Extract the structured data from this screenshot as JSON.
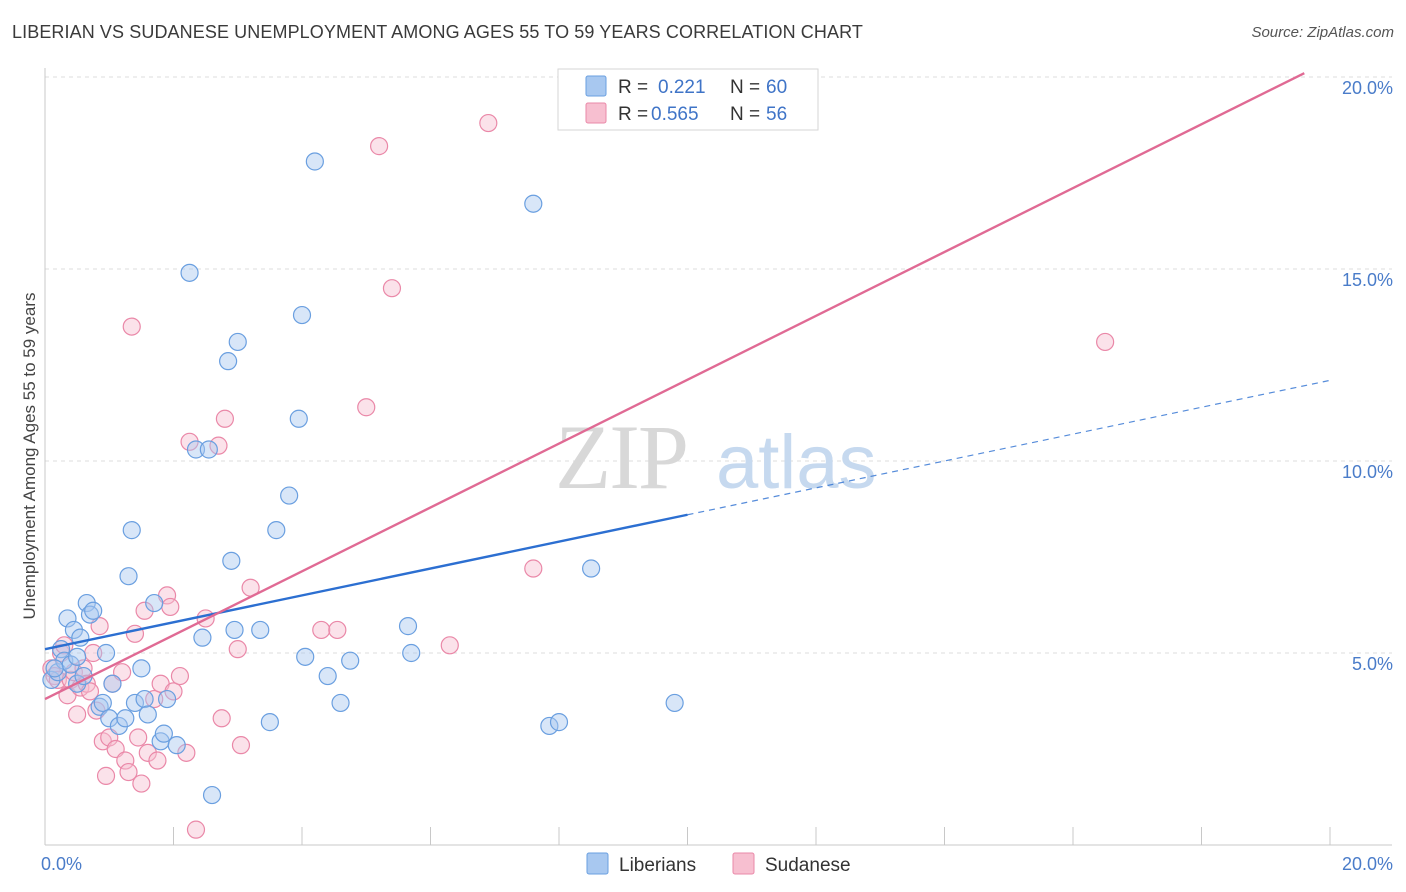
{
  "title": "LIBERIAN VS SUDANESE UNEMPLOYMENT AMONG AGES 55 TO 59 YEARS CORRELATION CHART",
  "source": "Source: ZipAtlas.com",
  "watermark": {
    "zip": "ZIP",
    "atlas": "atlas"
  },
  "colors": {
    "blue_fill": "#a8c8f0",
    "blue_stroke": "#6a9fe0",
    "blue_line": "#2c6fd1",
    "pink_fill": "#f7bfd0",
    "pink_stroke": "#ea88a8",
    "pink_line": "#e06a94",
    "grid": "#dcdcdc",
    "tick_label": "#4a7cc9"
  },
  "legend": {
    "rows": [
      {
        "r_label": "R =",
        "r_value": "0.221",
        "n_label": "N =",
        "n_value": "60"
      },
      {
        "r_label": "R =",
        "r_value": "0.565",
        "n_label": "N =",
        "n_value": "56"
      }
    ]
  },
  "chart_data": {
    "type": "scatter",
    "title": "LIBERIAN VS SUDANESE UNEMPLOYMENT AMONG AGES 55 TO 59 YEARS CORRELATION CHART",
    "xlabel": "",
    "ylabel": "Unemployment Among Ages 55 to 59 years",
    "xlim": [
      0,
      20
    ],
    "ylim": [
      0,
      20
    ],
    "x_tick_labels": [
      "0.0%",
      "20.0%"
    ],
    "y_ticks": [
      {
        "value": 5,
        "label": "5.0%"
      },
      {
        "value": 10,
        "label": "10.0%"
      },
      {
        "value": 15,
        "label": "15.0%"
      },
      {
        "value": 20,
        "label": "20.0%"
      }
    ],
    "series": [
      {
        "name": "Liberians",
        "r": 0.221,
        "n": 60,
        "trend": {
          "x0": 0,
          "y0": 5.1,
          "x_solid_end": 10,
          "y_solid_end": 8.6,
          "x_dash_end": 20,
          "y_dash_end": 12.1
        },
        "points": [
          [
            0.1,
            4.3
          ],
          [
            0.2,
            4.5
          ],
          [
            0.25,
            5.1
          ],
          [
            0.3,
            4.8
          ],
          [
            0.35,
            5.9
          ],
          [
            0.4,
            4.7
          ],
          [
            0.45,
            5.6
          ],
          [
            0.5,
            4.2
          ],
          [
            0.55,
            5.4
          ],
          [
            0.6,
            4.4
          ],
          [
            0.65,
            6.3
          ],
          [
            0.7,
            6.0
          ],
          [
            0.75,
            6.1
          ],
          [
            0.85,
            3.6
          ],
          [
            0.9,
            3.7
          ],
          [
            0.95,
            5.0
          ],
          [
            1.0,
            3.3
          ],
          [
            1.05,
            4.2
          ],
          [
            1.15,
            3.1
          ],
          [
            1.25,
            3.3
          ],
          [
            1.3,
            7.0
          ],
          [
            1.35,
            8.2
          ],
          [
            1.4,
            3.7
          ],
          [
            1.5,
            4.6
          ],
          [
            1.55,
            3.8
          ],
          [
            1.6,
            3.4
          ],
          [
            1.7,
            6.3
          ],
          [
            1.8,
            2.7
          ],
          [
            1.85,
            2.9
          ],
          [
            1.9,
            3.8
          ],
          [
            2.05,
            2.6
          ],
          [
            2.25,
            14.9
          ],
          [
            2.35,
            10.3
          ],
          [
            2.45,
            5.4
          ],
          [
            2.55,
            10.3
          ],
          [
            2.6,
            1.3
          ],
          [
            2.85,
            12.6
          ],
          [
            2.95,
            5.6
          ],
          [
            3.0,
            13.1
          ],
          [
            2.9,
            7.4
          ],
          [
            3.35,
            5.6
          ],
          [
            3.5,
            3.2
          ],
          [
            3.6,
            8.2
          ],
          [
            3.8,
            9.1
          ],
          [
            3.95,
            11.1
          ],
          [
            4.0,
            13.8
          ],
          [
            4.05,
            4.9
          ],
          [
            4.2,
            17.8
          ],
          [
            4.4,
            4.4
          ],
          [
            4.6,
            3.7
          ],
          [
            4.75,
            4.8
          ],
          [
            5.65,
            5.7
          ],
          [
            5.7,
            5.0
          ],
          [
            7.6,
            16.7
          ],
          [
            7.85,
            3.1
          ],
          [
            8.0,
            3.2
          ],
          [
            8.5,
            7.2
          ],
          [
            9.8,
            3.7
          ],
          [
            0.15,
            4.6
          ],
          [
            0.5,
            4.9
          ]
        ]
      },
      {
        "name": "Sudanese",
        "r": 0.565,
        "n": 56,
        "trend": {
          "x0": 0,
          "y0": 3.8,
          "x1": 19.6,
          "y1": 20.1
        },
        "points": [
          [
            0.1,
            4.6
          ],
          [
            0.15,
            4.4
          ],
          [
            0.2,
            4.3
          ],
          [
            0.25,
            5.0
          ],
          [
            0.3,
            5.2
          ],
          [
            0.35,
            3.9
          ],
          [
            0.4,
            4.3
          ],
          [
            0.45,
            4.5
          ],
          [
            0.5,
            3.4
          ],
          [
            0.55,
            4.1
          ],
          [
            0.6,
            4.6
          ],
          [
            0.65,
            4.2
          ],
          [
            0.7,
            4.0
          ],
          [
            0.75,
            5.0
          ],
          [
            0.8,
            3.5
          ],
          [
            0.85,
            5.7
          ],
          [
            0.9,
            2.7
          ],
          [
            0.95,
            1.8
          ],
          [
            1.0,
            2.8
          ],
          [
            1.05,
            4.2
          ],
          [
            1.1,
            2.5
          ],
          [
            1.2,
            4.5
          ],
          [
            1.25,
            2.2
          ],
          [
            1.3,
            1.9
          ],
          [
            1.35,
            13.5
          ],
          [
            1.4,
            5.5
          ],
          [
            1.45,
            2.8
          ],
          [
            1.5,
            1.6
          ],
          [
            1.55,
            6.1
          ],
          [
            1.6,
            2.4
          ],
          [
            1.7,
            3.8
          ],
          [
            1.75,
            2.2
          ],
          [
            1.8,
            4.2
          ],
          [
            1.9,
            6.5
          ],
          [
            1.95,
            6.2
          ],
          [
            2.0,
            4.0
          ],
          [
            2.1,
            4.4
          ],
          [
            2.2,
            2.4
          ],
          [
            2.25,
            10.5
          ],
          [
            2.35,
            0.4
          ],
          [
            2.5,
            5.9
          ],
          [
            2.7,
            10.4
          ],
          [
            2.75,
            3.3
          ],
          [
            2.8,
            11.1
          ],
          [
            3.0,
            5.1
          ],
          [
            3.05,
            2.6
          ],
          [
            3.2,
            6.7
          ],
          [
            4.3,
            5.6
          ],
          [
            4.55,
            5.6
          ],
          [
            5.0,
            11.4
          ],
          [
            5.2,
            18.2
          ],
          [
            5.4,
            14.5
          ],
          [
            6.3,
            5.2
          ],
          [
            6.9,
            18.8
          ],
          [
            7.6,
            7.2
          ],
          [
            16.5,
            13.1
          ]
        ]
      }
    ]
  },
  "bottom_legend": {
    "items": [
      {
        "label": "Liberians"
      },
      {
        "label": "Sudanese"
      }
    ]
  }
}
